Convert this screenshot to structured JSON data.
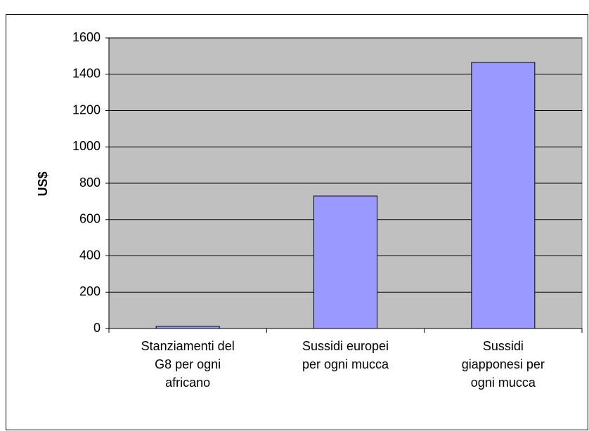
{
  "chart_data": {
    "type": "bar",
    "y_label": "US$",
    "categories": [
      [
        "Stanziamenti del",
        "G8 per ogni",
        "africano"
      ],
      [
        "Sussidi europei",
        "per ogni mucca"
      ],
      [
        "Sussidi",
        "giapponesi per",
        "ogni mucca"
      ]
    ],
    "values": [
      12,
      730,
      1465
    ],
    "color": "#9999ff",
    "ylim": [
      0,
      1600
    ],
    "yticks": [
      0,
      200,
      400,
      600,
      800,
      1000,
      1200,
      1400,
      1600
    ],
    "grid": true
  }
}
